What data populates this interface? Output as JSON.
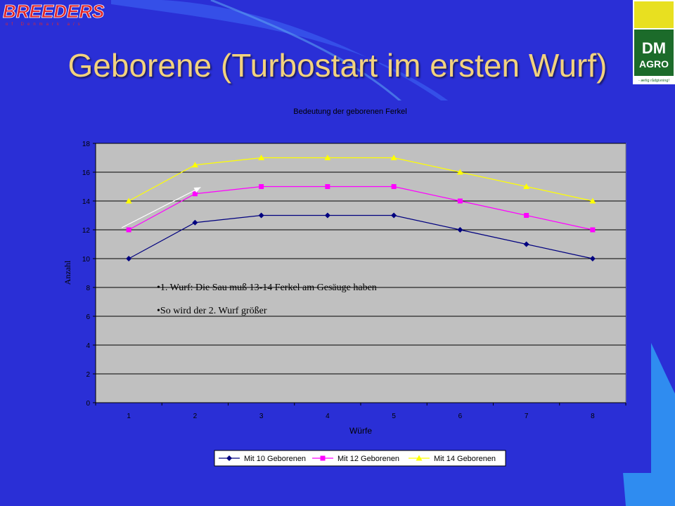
{
  "slide": {
    "title": "Geborene (Turbostart im ersten Wurf)",
    "logo_left": {
      "text": "BREEDERS",
      "subtext": "of Denmark a/s"
    },
    "logo_right": {
      "text": "DM",
      "subtext": "AGRO",
      "tagline": "- ærlig rådgivning!"
    }
  },
  "colors": {
    "background": "#2a2fd6",
    "title": "#f2d27e",
    "series_10": "#00007f",
    "series_12": "#ff00ff",
    "series_14": "#ffff00"
  },
  "chart_data": {
    "type": "line",
    "title": "Bedeutung der geborenen Ferkel",
    "xlabel": "Würfe",
    "ylabel": "Anzahl",
    "categories": [
      "1",
      "2",
      "3",
      "4",
      "5",
      "6",
      "7",
      "8"
    ],
    "ylim": [
      0,
      18
    ],
    "yticks": [
      0,
      2,
      4,
      6,
      8,
      10,
      12,
      14,
      16,
      18
    ],
    "grid": true,
    "legend_position": "bottom",
    "series": [
      {
        "name": "Mit 10 Geborenen",
        "marker": "diamond",
        "color": "#00007f",
        "values": [
          10,
          12.5,
          13,
          13,
          13,
          12,
          11,
          10
        ]
      },
      {
        "name": "Mit 12 Geborenen",
        "marker": "square",
        "color": "#ff00ff",
        "values": [
          12,
          14.5,
          15,
          15,
          15,
          14,
          13,
          12
        ]
      },
      {
        "name": "Mit 14 Geborenen",
        "marker": "triangle",
        "color": "#ffff00",
        "values": [
          14,
          16.5,
          17,
          17,
          17,
          16,
          15,
          14
        ]
      }
    ],
    "annotations": [
      "•1. Wurf: Die Sau muß 13-14 Ferkel am Gesäuge haben",
      "•So wird der  2. Wurf größer"
    ],
    "arrow": {
      "from": {
        "x": 1,
        "y": 12
      },
      "to": {
        "x": 2,
        "y": 15
      }
    }
  }
}
